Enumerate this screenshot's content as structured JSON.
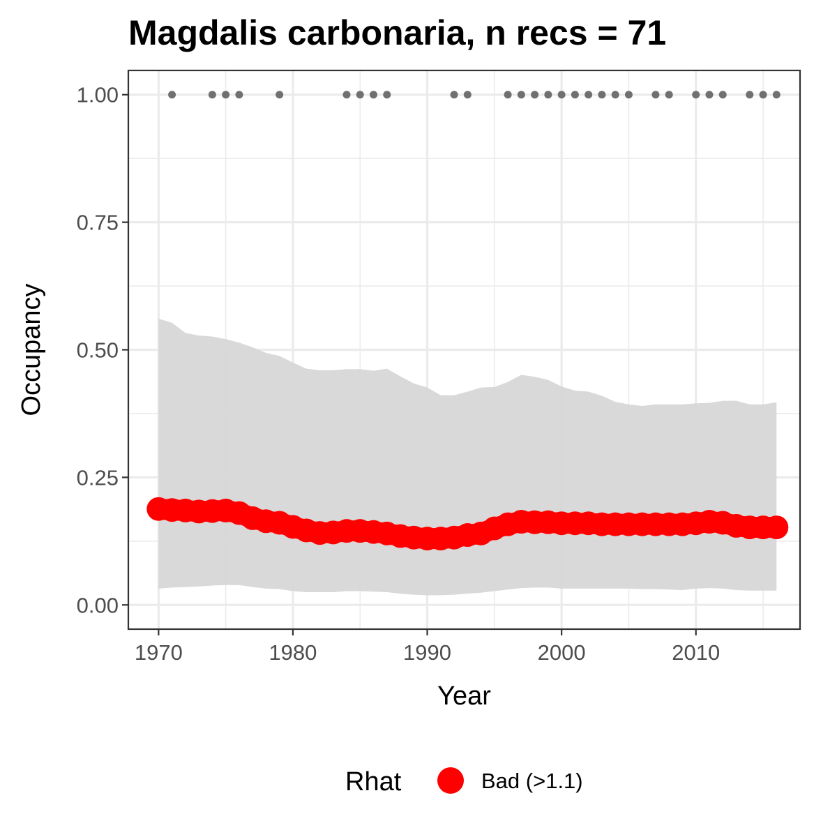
{
  "chart_data": {
    "type": "line",
    "title": "Magdalis carbonaria, n recs = 71",
    "xlabel": "Year",
    "ylabel": "Occupancy",
    "xlim": [
      1967.75,
      2017.75
    ],
    "ylim": [
      -0.0475,
      1.0475
    ],
    "x_ticks": [
      1970,
      1980,
      1990,
      2000,
      2010
    ],
    "x_tick_labels": [
      "1970",
      "1980",
      "1990",
      "2000",
      "2010"
    ],
    "x_minor_ticks": [
      1975,
      1985,
      1995,
      2005,
      2015
    ],
    "y_ticks": [
      0,
      0.25,
      0.5,
      0.75,
      1.0
    ],
    "y_tick_labels": [
      "0.00",
      "0.25",
      "0.50",
      "0.75",
      "1.00"
    ],
    "y_minor_ticks": [
      0.125,
      0.375,
      0.625,
      0.875
    ],
    "grid": true,
    "legend": {
      "title": "Rhat",
      "position": "bottom",
      "entries": [
        {
          "label": "Bad (>1.1)",
          "color": "#ff0000"
        }
      ]
    },
    "colors": {
      "line": "#ff0000",
      "ribbon": "#d6d6d6",
      "records": "#707070",
      "grid": "#ebebeb",
      "border": "#333333"
    },
    "series": [
      {
        "name": "Bad (>1.1)",
        "x": [
          1970,
          1971,
          1972,
          1973,
          1974,
          1975,
          1976,
          1977,
          1978,
          1979,
          1980,
          1981,
          1982,
          1983,
          1984,
          1985,
          1986,
          1987,
          1988,
          1989,
          1990,
          1991,
          1992,
          1993,
          1994,
          1995,
          1996,
          1997,
          1998,
          1999,
          2000,
          2001,
          2002,
          2003,
          2004,
          2005,
          2006,
          2007,
          2008,
          2009,
          2010,
          2011,
          2012,
          2013,
          2014,
          2015,
          2016
        ],
        "y": [
          0.188,
          0.186,
          0.185,
          0.183,
          0.184,
          0.185,
          0.18,
          0.17,
          0.164,
          0.161,
          0.153,
          0.146,
          0.141,
          0.142,
          0.145,
          0.145,
          0.143,
          0.14,
          0.135,
          0.132,
          0.13,
          0.13,
          0.132,
          0.137,
          0.14,
          0.15,
          0.158,
          0.163,
          0.162,
          0.162,
          0.16,
          0.16,
          0.16,
          0.158,
          0.158,
          0.158,
          0.158,
          0.158,
          0.158,
          0.158,
          0.16,
          0.163,
          0.161,
          0.155,
          0.152,
          0.152,
          0.152
        ],
        "lower": [
          0.032,
          0.034,
          0.035,
          0.036,
          0.038,
          0.039,
          0.039,
          0.035,
          0.032,
          0.031,
          0.027,
          0.025,
          0.025,
          0.025,
          0.027,
          0.027,
          0.026,
          0.025,
          0.022,
          0.02,
          0.019,
          0.019,
          0.02,
          0.022,
          0.024,
          0.027,
          0.03,
          0.033,
          0.034,
          0.034,
          0.032,
          0.032,
          0.032,
          0.032,
          0.032,
          0.032,
          0.031,
          0.031,
          0.03,
          0.029,
          0.032,
          0.033,
          0.032,
          0.029,
          0.028,
          0.028,
          0.028
        ],
        "upper": [
          0.561,
          0.553,
          0.533,
          0.528,
          0.526,
          0.521,
          0.514,
          0.505,
          0.494,
          0.488,
          0.475,
          0.463,
          0.46,
          0.46,
          0.462,
          0.462,
          0.459,
          0.463,
          0.448,
          0.434,
          0.426,
          0.411,
          0.411,
          0.418,
          0.426,
          0.427,
          0.437,
          0.451,
          0.447,
          0.441,
          0.428,
          0.42,
          0.418,
          0.41,
          0.398,
          0.393,
          0.39,
          0.393,
          0.393,
          0.393,
          0.395,
          0.396,
          0.4,
          0.4,
          0.393,
          0.393,
          0.397
        ]
      }
    ],
    "records": {
      "y": 1.0,
      "x": [
        1971,
        1974,
        1975,
        1976,
        1979,
        1984,
        1985,
        1986,
        1987,
        1992,
        1993,
        1996,
        1997,
        1998,
        1999,
        2000,
        2001,
        2002,
        2003,
        2004,
        2005,
        2007,
        2008,
        2010,
        2011,
        2012,
        2014,
        2015,
        2016
      ]
    }
  }
}
